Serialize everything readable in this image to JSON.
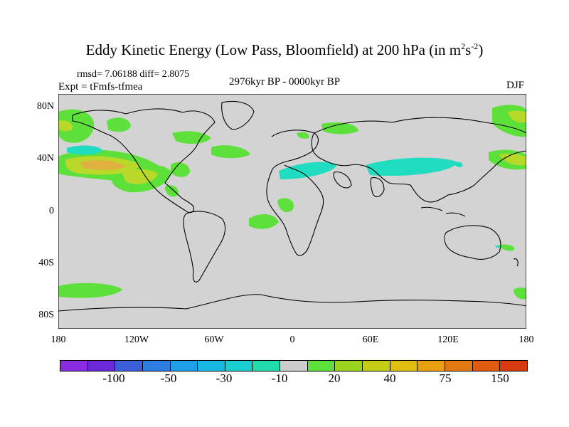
{
  "title": {
    "main": "Eddy Kinetic Energy (Low Pass, Bloomfield) at 200 hPa (in m",
    "sup1": "2",
    "mid": "s",
    "sup2": "-2",
    "end": ")"
  },
  "stats": "rmsd= 7.06188 diff= 2.8075",
  "expt": "Expt = tFmfs-tfmea",
  "period": "2976kyr BP - 0000kyr BP",
  "season": "DJF",
  "lat_labels": [
    "80N",
    "40N",
    "0",
    "40S",
    "80S"
  ],
  "lon_labels": [
    "180",
    "120W",
    "60W",
    "0",
    "60E",
    "120E",
    "180"
  ],
  "colorbar": {
    "colors": [
      "#8a2be2",
      "#6a28d8",
      "#3a5fd8",
      "#2c7fe0",
      "#1f9fe8",
      "#16b7e0",
      "#19cfd2",
      "#20dcaa",
      "#cccccc",
      "#5ee03a",
      "#9ad41c",
      "#c4cc14",
      "#e0be10",
      "#e8a010",
      "#e07a10",
      "#e05a10",
      "#d83a10"
    ],
    "labels": [
      "-100",
      "-50",
      "-30",
      "-10",
      "20",
      "40",
      "75",
      "150"
    ]
  },
  "map": {
    "land_color": "#d3d3d3",
    "levels": {
      "green": "#5ee03a",
      "cyan": "#20dcc0",
      "yellow_green": "#b8d82a",
      "orange": "#e0b040"
    }
  }
}
